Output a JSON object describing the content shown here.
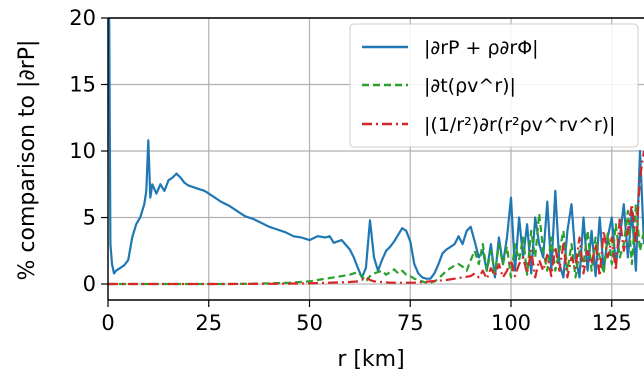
{
  "chart_data": {
    "type": "line",
    "xlabel": "r [km]",
    "ylabel": "% comparison to |∂rP|",
    "xlim": [
      0,
      133
    ],
    "ylim": [
      -1.2,
      20
    ],
    "xticks": [
      0,
      25,
      50,
      75,
      100,
      125
    ],
    "yticks": [
      0,
      5,
      10,
      15,
      20
    ],
    "grid": true,
    "legend_position": "top-right",
    "series": [
      {
        "name": "|∂rP + ρ∂rΦ|",
        "color": "#1f77b4",
        "style": "solid",
        "x": [
          0.3,
          0.6,
          1,
          1.5,
          2,
          3,
          4,
          5,
          6,
          7,
          8,
          9,
          9.5,
          10,
          10.5,
          11,
          12,
          13,
          14,
          15,
          16,
          17,
          18,
          19,
          20,
          22,
          24,
          26,
          28,
          30,
          32,
          34,
          36,
          38,
          40,
          42,
          44,
          46,
          48,
          50,
          52,
          54,
          55,
          56,
          58,
          60,
          61,
          62,
          63,
          64,
          65,
          66,
          67,
          68,
          69,
          70,
          71,
          72,
          73,
          74,
          75,
          76,
          77,
          78,
          79,
          80,
          81,
          82,
          83,
          84,
          85,
          86,
          87,
          88,
          89,
          90,
          91,
          92,
          93,
          94,
          95,
          96,
          97,
          98,
          99,
          100,
          101,
          102,
          103,
          104,
          105,
          106,
          107,
          108,
          109,
          110,
          111,
          112,
          113,
          114,
          115,
          116,
          117,
          118,
          119,
          120,
          121,
          122,
          123,
          124,
          125,
          126,
          127,
          128,
          129,
          130,
          131,
          132,
          133
        ],
        "y": [
          20,
          3,
          1.5,
          0.8,
          1.0,
          1.2,
          1.4,
          1.8,
          3.5,
          4.5,
          5.0,
          6.0,
          7.0,
          10.8,
          6.5,
          7.5,
          6.8,
          7.5,
          7.0,
          7.8,
          8.0,
          8.3,
          8.0,
          7.6,
          7.4,
          7.2,
          7.0,
          6.6,
          6.2,
          5.9,
          5.5,
          5.1,
          4.9,
          4.6,
          4.3,
          4.1,
          3.9,
          3.6,
          3.5,
          3.3,
          3.6,
          3.5,
          3.6,
          3.1,
          3.3,
          2.6,
          2.0,
          1.2,
          0.5,
          1.2,
          4.8,
          2.0,
          1.0,
          1.8,
          2.5,
          2.8,
          3.2,
          3.7,
          4.2,
          4.0,
          3.2,
          1.5,
          0.8,
          0.5,
          0.4,
          0.4,
          0.8,
          1.5,
          2.3,
          2.6,
          2.8,
          3.0,
          3.6,
          3.0,
          4.0,
          4.3,
          3.2,
          2.0,
          2.5,
          1.0,
          3.0,
          0.5,
          3.5,
          1.5,
          3.5,
          6.5,
          1.0,
          5.0,
          2.0,
          4.5,
          0.8,
          5.0,
          3.0,
          2.0,
          6.2,
          1.0,
          7.0,
          1.5,
          0.5,
          4.0,
          6.0,
          2.0,
          0.5,
          5.0,
          1.0,
          4.0,
          0.6,
          5.0,
          1.0,
          3.5,
          5.0,
          1.5,
          3.5,
          6.0,
          2.0,
          5.5,
          1.0,
          10.0,
          3.0
        ]
      },
      {
        "name": "|∂t(ρv^r)|",
        "color": "#2ca02c",
        "style": "dashed",
        "x": [
          0,
          10,
          20,
          30,
          40,
          45,
          50,
          52,
          54,
          56,
          58,
          60,
          62,
          63,
          64,
          65,
          66,
          67,
          68,
          69,
          70,
          71,
          72,
          73,
          74,
          75,
          76,
          77,
          78,
          79,
          80,
          81,
          82,
          83,
          84,
          85,
          86,
          87,
          88,
          89,
          90,
          91,
          92,
          93,
          94,
          95,
          96,
          97,
          98,
          99,
          100,
          101,
          102,
          103,
          104,
          105,
          106,
          107,
          108,
          109,
          110,
          111,
          112,
          113,
          114,
          115,
          116,
          117,
          118,
          119,
          120,
          121,
          122,
          123,
          124,
          125,
          126,
          127,
          128,
          129,
          130,
          131,
          132,
          133
        ],
        "y": [
          0,
          0,
          0,
          0,
          0.05,
          0.1,
          0.2,
          0.3,
          0.4,
          0.5,
          0.6,
          0.7,
          0.9,
          0.6,
          0.2,
          0.6,
          0.8,
          0.9,
          1.0,
          0.7,
          0.9,
          1.1,
          0.8,
          1.0,
          0.7,
          0.6,
          0.4,
          0.3,
          0.2,
          0.1,
          0.1,
          0.2,
          0.4,
          0.7,
          1.0,
          1.2,
          1.4,
          1.5,
          1.3,
          1.0,
          1.8,
          2.5,
          1.5,
          3.0,
          1.0,
          2.5,
          0.8,
          3.0,
          1.5,
          2.8,
          0.5,
          3.0,
          1.8,
          3.5,
          0.7,
          4.0,
          2.0,
          5.3,
          2.5,
          1.0,
          3.5,
          1.0,
          2.5,
          4.0,
          1.0,
          3.0,
          0.5,
          2.5,
          1.5,
          4.0,
          1.0,
          3.5,
          2.0,
          0.8,
          3.8,
          1.5,
          4.5,
          2.0,
          3.0,
          5.5,
          1.5,
          6.0,
          2.5,
          4.0
        ]
      },
      {
        "name": "|(1/r²)∂r(r²ρv^rv^r)|",
        "color": "#d62728",
        "style": "dashdot",
        "x": [
          0,
          10,
          20,
          30,
          40,
          50,
          55,
          60,
          62,
          63,
          64,
          65,
          66,
          68,
          70,
          72,
          74,
          76,
          78,
          80,
          82,
          84,
          86,
          88,
          90,
          91,
          92,
          93,
          94,
          95,
          96,
          97,
          98,
          99,
          100,
          101,
          102,
          103,
          104,
          105,
          106,
          107,
          108,
          109,
          110,
          111,
          112,
          113,
          114,
          115,
          116,
          117,
          118,
          119,
          120,
          121,
          122,
          123,
          124,
          125,
          126,
          127,
          128,
          129,
          130,
          131,
          132,
          133
        ],
        "y": [
          0,
          0,
          0,
          0,
          0.02,
          0.05,
          0.1,
          0.15,
          0.2,
          0.3,
          0.5,
          0.3,
          0.2,
          0.15,
          0.1,
          0.1,
          0.1,
          0.1,
          0.15,
          0.2,
          0.25,
          0.3,
          0.4,
          0.5,
          0.6,
          0.8,
          0.5,
          1.0,
          0.4,
          1.2,
          0.6,
          1.5,
          0.5,
          1.0,
          1.8,
          0.6,
          1.5,
          2.0,
          0.8,
          2.5,
          0.5,
          1.8,
          1.0,
          2.2,
          0.6,
          2.8,
          1.0,
          3.0,
          0.5,
          2.0,
          1.2,
          3.5,
          0.8,
          2.5,
          1.5,
          3.0,
          0.6,
          4.0,
          2.0,
          3.5,
          1.0,
          5.0,
          2.5,
          4.0,
          6.0,
          3.0,
          8.0,
          10.0
        ]
      }
    ]
  }
}
